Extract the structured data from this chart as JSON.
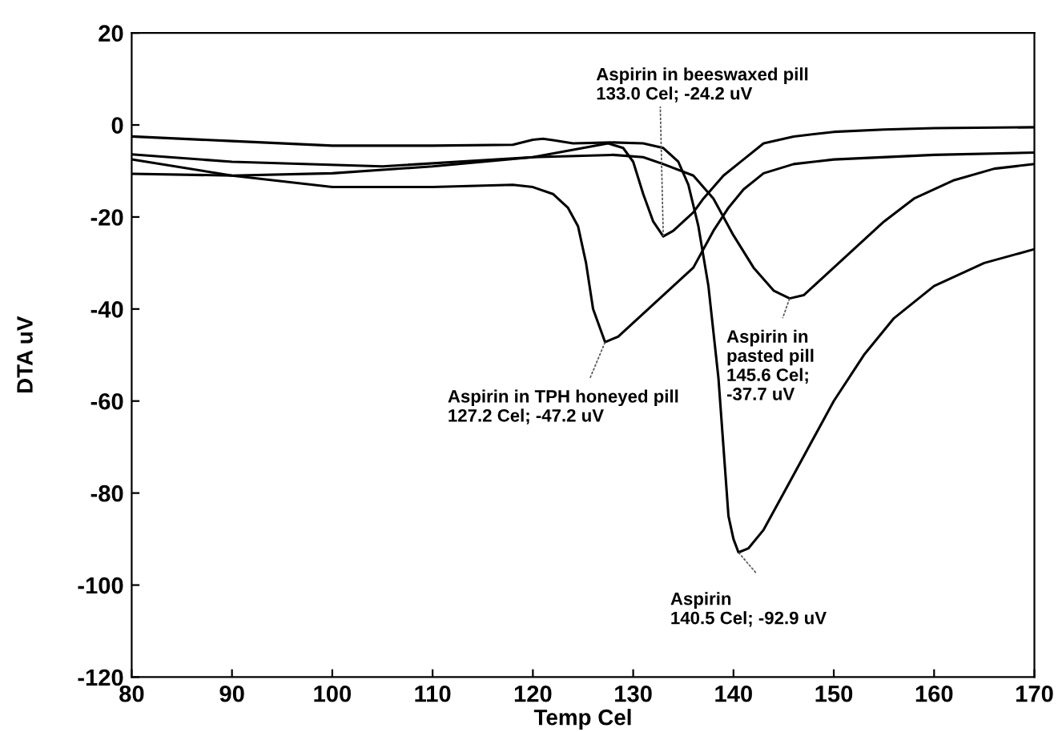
{
  "chart_data": {
    "type": "line",
    "xlabel": "Temp Cel",
    "ylabel": "DTA uV",
    "xlim": [
      80,
      170
    ],
    "xticks": [
      80,
      90,
      100,
      110,
      120,
      130,
      140,
      150,
      160,
      170
    ],
    "ylim": [
      -120,
      20
    ],
    "yticks": [
      -120,
      -100,
      -80,
      -60,
      -40,
      -20,
      0,
      20
    ],
    "grid": false,
    "legend": false,
    "marker": "none",
    "line_style": "solid",
    "series": [
      {
        "color": "#000000",
        "x": [
          80,
          90,
          100,
          110,
          118,
          120,
          121,
          122,
          124,
          128,
          131,
          133,
          134.5,
          135.5,
          136.5,
          137.5,
          138.5,
          139,
          139.5,
          140,
          140.5,
          141.5,
          143,
          145,
          147,
          150,
          153,
          156,
          160,
          165,
          170
        ],
        "values": [
          -2.5,
          -3.5,
          -4.5,
          -4.5,
          -4.3,
          -3.2,
          -3,
          -3.3,
          -4,
          -3.8,
          -4,
          -5,
          -8,
          -13,
          -22,
          -35,
          -55,
          -70,
          -85,
          -90,
          -92.9,
          -92,
          -88,
          -80,
          -72,
          -60,
          -50,
          -42,
          -35,
          -30,
          -27
        ]
      },
      {
        "color": "#000000",
        "x": [
          80,
          90,
          100,
          110,
          120,
          125,
          127.5,
          129,
          130,
          131,
          132,
          133,
          134,
          135,
          136,
          137,
          139,
          141,
          143,
          146,
          150,
          155,
          160,
          170
        ],
        "values": [
          -10.6,
          -11,
          -10.5,
          -9,
          -7,
          -5,
          -4,
          -5,
          -8,
          -15,
          -21,
          -24.2,
          -23,
          -21,
          -19,
          -16,
          -11,
          -7.5,
          -4,
          -2.5,
          -1.5,
          -1,
          -0.7,
          -0.5
        ]
      },
      {
        "color": "#000000",
        "x": [
          80,
          90,
          105,
          120,
          128,
          131,
          133,
          136,
          138,
          140,
          142,
          144,
          145.6,
          147,
          149,
          152,
          155,
          158,
          162,
          166,
          170
        ],
        "values": [
          -6.4,
          -8,
          -9,
          -7,
          -6.5,
          -7,
          -8.5,
          -11,
          -16,
          -24,
          -31,
          -36,
          -37.7,
          -37,
          -33,
          -27,
          -21,
          -16,
          -12,
          -9.5,
          -8.5
        ]
      },
      {
        "color": "#000000",
        "x": [
          80,
          90,
          100,
          110,
          118,
          120,
          122,
          123.5,
          124.5,
          125.3,
          126,
          127.2,
          128.5,
          130,
          132,
          134,
          136,
          138,
          139.5,
          141,
          143,
          146,
          150,
          160,
          170
        ],
        "values": [
          -7.5,
          -11,
          -13.5,
          -13.5,
          -13,
          -13.5,
          -15,
          -18,
          -22,
          -30,
          -40,
          -47.2,
          -46,
          -43,
          -39,
          -35,
          -31,
          -23,
          -18,
          -14,
          -10.5,
          -8.5,
          -7.5,
          -6.5,
          -6
        ]
      }
    ],
    "annotations": [
      {
        "text": "Aspirin in beeswaxed pill\n133.0 Cel; -24.2 uV",
        "x": 133.0,
        "y": -24.2
      },
      {
        "text": "Aspirin in TPH honeyed pill\n127.2 Cel; -47.2 uV",
        "x": 127.2,
        "y": -47.2
      },
      {
        "text": "Aspirin in\npasted pill\n145.6 Cel;\n-37.7 uV",
        "x": 145.6,
        "y": -37.7
      },
      {
        "text": "Aspirin\n140.5 Cel; -92.9 uV",
        "x": 140.5,
        "y": -92.9
      }
    ]
  }
}
